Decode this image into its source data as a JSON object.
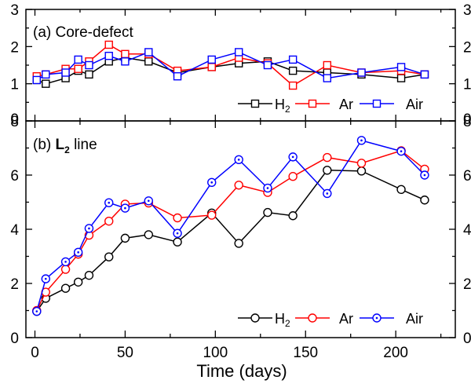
{
  "chart_data": [
    {
      "type": "line",
      "panel": "(a)",
      "title": "Core-defect",
      "x_label": "Time (days)",
      "x_ticks": [
        "0",
        "50",
        "100",
        "150",
        "200"
      ],
      "y_ticks": [
        "0",
        "1",
        "2",
        "3"
      ],
      "xlim": [
        -5,
        233
      ],
      "ylim": [
        0,
        3
      ],
      "legend_position": "bottom-right",
      "series": [
        {
          "name": "H2",
          "color": "#000000",
          "marker": "open-square",
          "x": [
            1,
            6,
            17,
            24,
            30,
            41,
            50,
            63,
            79,
            98,
            113,
            129,
            143,
            162,
            181,
            203,
            216
          ],
          "y": [
            1.1,
            1.0,
            1.15,
            1.35,
            1.25,
            1.6,
            1.7,
            1.6,
            1.3,
            1.45,
            1.55,
            1.6,
            1.35,
            1.3,
            1.25,
            1.15,
            1.25
          ]
        },
        {
          "name": "Ar",
          "color": "#ff0000",
          "marker": "open-square",
          "x": [
            1,
            6,
            17,
            24,
            30,
            41,
            50,
            63,
            79,
            98,
            113,
            129,
            143,
            162,
            181,
            203,
            216
          ],
          "y": [
            1.2,
            1.25,
            1.4,
            1.4,
            1.6,
            2.05,
            1.8,
            1.8,
            1.35,
            1.45,
            1.7,
            1.55,
            0.95,
            1.5,
            1.3,
            1.35,
            1.25
          ]
        },
        {
          "name": "Air",
          "color": "#0000ff",
          "marker": "open-square",
          "x": [
            1,
            6,
            17,
            24,
            30,
            41,
            50,
            63,
            79,
            98,
            113,
            129,
            143,
            162,
            181,
            203,
            216
          ],
          "y": [
            1.1,
            1.25,
            1.3,
            1.65,
            1.5,
            1.75,
            1.6,
            1.85,
            1.2,
            1.65,
            1.85,
            1.5,
            1.65,
            1.15,
            1.3,
            1.45,
            1.25
          ]
        }
      ]
    },
    {
      "type": "line",
      "panel": "(b)",
      "title_bold": "L",
      "title_sub": "2",
      "title_rest": "line",
      "x_label": "Time (days)",
      "x_ticks": [
        "0",
        "50",
        "100",
        "150",
        "200"
      ],
      "y_ticks": [
        "0",
        "2",
        "4",
        "6",
        "8"
      ],
      "xlim": [
        -5,
        233
      ],
      "ylim": [
        0,
        8
      ],
      "legend_position": "bottom-right",
      "series": [
        {
          "name": "H2",
          "color": "#000000",
          "marker": "open-circle",
          "x": [
            1,
            6,
            17,
            24,
            30,
            41,
            50,
            63,
            79,
            98,
            113,
            129,
            143,
            162,
            181,
            203,
            216
          ],
          "y": [
            0.97,
            1.45,
            1.82,
            2.05,
            2.3,
            2.98,
            3.67,
            3.8,
            3.53,
            4.6,
            3.48,
            4.62,
            4.5,
            6.18,
            6.15,
            5.47,
            5.08
          ]
        },
        {
          "name": "Ar",
          "color": "#ff0000",
          "marker": "open-circle",
          "x": [
            1,
            6,
            17,
            24,
            30,
            41,
            50,
            63,
            79,
            98,
            113,
            129,
            143,
            162,
            181,
            203,
            216
          ],
          "y": [
            1.0,
            1.68,
            2.52,
            3.08,
            3.78,
            4.3,
            4.93,
            4.97,
            4.42,
            4.52,
            5.63,
            5.36,
            5.95,
            6.65,
            6.44,
            6.9,
            6.22
          ]
        },
        {
          "name": "Air",
          "color": "#0000ff",
          "marker": "dotted-circle",
          "x": [
            1,
            6,
            17,
            24,
            30,
            41,
            50,
            63,
            79,
            98,
            113,
            129,
            143,
            162,
            181,
            203,
            216
          ],
          "y": [
            0.97,
            2.17,
            2.8,
            3.15,
            4.03,
            4.98,
            4.78,
            5.05,
            3.85,
            5.73,
            6.57,
            5.52,
            6.67,
            5.32,
            7.28,
            6.88,
            6.0
          ]
        }
      ]
    }
  ]
}
